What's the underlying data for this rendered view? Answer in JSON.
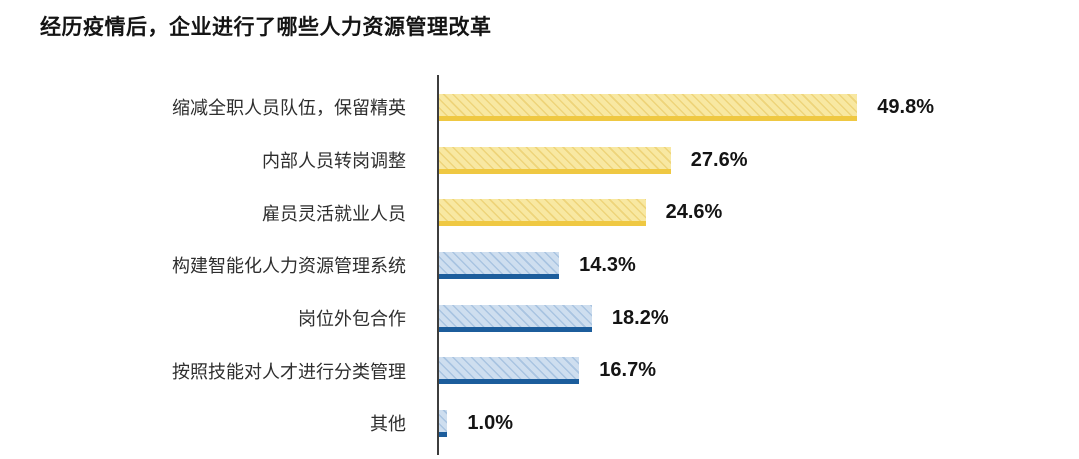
{
  "title": "经历疫情后，企业进行了哪些人力资源管理改革",
  "colors": {
    "yellow_fill": "#F8E8A2",
    "yellow_hatch": "#EED47A",
    "yellow_edge": "#EFC842",
    "blue_fill": "#CEDEEF",
    "blue_hatch": "#A9C4E1",
    "blue_edge": "#1C5D9C",
    "axis": "#3D3D3D"
  },
  "chart_data": {
    "type": "bar",
    "orientation": "horizontal",
    "title": "经历疫情后，企业进行了哪些人力资源管理改革",
    "categories": [
      "缩减全职人员队伍，保留精英",
      "内部人员转岗调整",
      "雇员灵活就业人员",
      "构建智能化人力资源管理系统",
      "岗位外包合作",
      "按照技能对人才进行分类管理",
      "其他"
    ],
    "values": [
      49.8,
      27.6,
      24.6,
      14.3,
      18.2,
      16.7,
      1.0
    ],
    "value_labels": [
      "49.8%",
      "27.6%",
      "24.6%",
      "14.3%",
      "18.2%",
      "16.7%",
      "1.0%"
    ],
    "bar_colors": [
      "yellow",
      "yellow",
      "yellow",
      "blue",
      "blue",
      "blue",
      "blue"
    ],
    "xlim": [
      0,
      55
    ],
    "grid": false,
    "legend": "none",
    "value_label_position": "end",
    "bar_style": "diagonal-hatch with solid bottom edge"
  }
}
